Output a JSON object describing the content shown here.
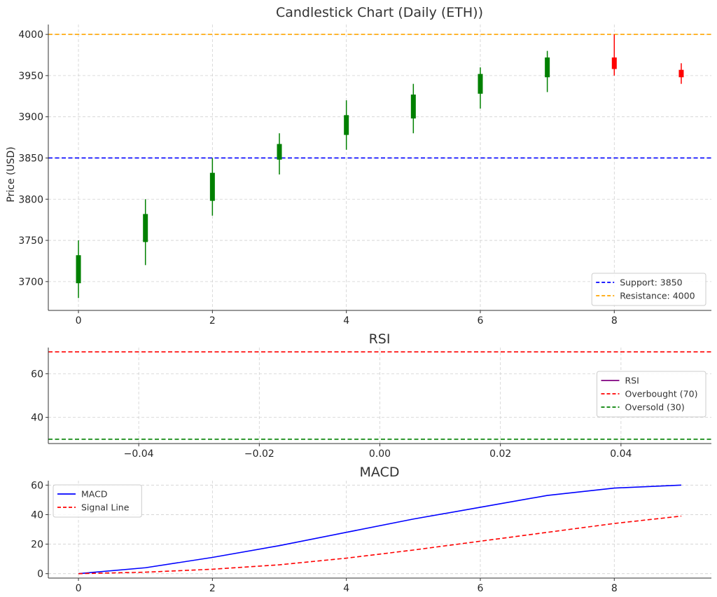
{
  "chart_data": [
    {
      "type": "candlestick",
      "title": "Candlestick Chart (Daily (ETH))",
      "xlabel": "",
      "ylabel": "Price (USD)",
      "xlim": [
        -0.45,
        9.45
      ],
      "ylim": [
        3665,
        4012
      ],
      "xticks": [
        0,
        2,
        4,
        6,
        8
      ],
      "yticks": [
        3700,
        3750,
        3800,
        3850,
        3900,
        3950,
        4000
      ],
      "grid": true,
      "legend_position": "lower-right",
      "colors": {
        "up": "#008000",
        "down": "#ff0000"
      },
      "candles": [
        {
          "x": 0,
          "open": 3698,
          "high": 3750,
          "low": 3680,
          "close": 3732
        },
        {
          "x": 1,
          "open": 3748,
          "high": 3800,
          "low": 3720,
          "close": 3782
        },
        {
          "x": 2,
          "open": 3798,
          "high": 3850,
          "low": 3780,
          "close": 3832
        },
        {
          "x": 3,
          "open": 3848,
          "high": 3880,
          "low": 3830,
          "close": 3867
        },
        {
          "x": 4,
          "open": 3878,
          "high": 3920,
          "low": 3860,
          "close": 3902
        },
        {
          "x": 5,
          "open": 3898,
          "high": 3940,
          "low": 3880,
          "close": 3927
        },
        {
          "x": 6,
          "open": 3928,
          "high": 3960,
          "low": 3910,
          "close": 3952
        },
        {
          "x": 7,
          "open": 3948,
          "high": 3980,
          "low": 3930,
          "close": 3972
        },
        {
          "x": 8,
          "open": 3972,
          "high": 4000,
          "low": 3950,
          "close": 3958
        },
        {
          "x": 9,
          "open": 3957,
          "high": 3965,
          "low": 3940,
          "close": 3948
        }
      ],
      "reference_lines": [
        {
          "name": "Support: 3850",
          "y": 3850,
          "color": "#0000ff"
        },
        {
          "name": "Resistance: 4000",
          "y": 4000,
          "color": "#ffa500"
        }
      ]
    },
    {
      "type": "line",
      "title": "RSI",
      "xlabel": "",
      "ylabel": "",
      "xlim": [
        -0.055,
        0.055
      ],
      "ylim": [
        28,
        72
      ],
      "xticks": [
        -0.04,
        -0.02,
        0.0,
        0.02,
        0.04
      ],
      "xtick_labels": [
        "−0.04",
        "−0.02",
        "0.00",
        "0.02",
        "0.04"
      ],
      "yticks": [
        40,
        60
      ],
      "grid": true,
      "legend_position": "center-right",
      "series": [
        {
          "name": "RSI",
          "color": "#800080",
          "values": []
        }
      ],
      "reference_lines": [
        {
          "name": "Overbought (70)",
          "y": 70,
          "color": "#ff0000"
        },
        {
          "name": "Oversold (30)",
          "y": 30,
          "color": "#008000"
        }
      ]
    },
    {
      "type": "line",
      "title": "MACD",
      "xlabel": "",
      "ylabel": "",
      "xlim": [
        -0.45,
        9.45
      ],
      "ylim": [
        -3,
        63
      ],
      "xticks": [
        0,
        2,
        4,
        6,
        8
      ],
      "yticks": [
        0,
        20,
        40,
        60
      ],
      "grid": true,
      "legend_position": "top-left",
      "x": [
        0,
        1,
        2,
        3,
        4,
        5,
        6,
        7,
        8,
        9
      ],
      "series": [
        {
          "name": "MACD",
          "color": "#0000ff",
          "dashed": false,
          "values": [
            0,
            4,
            11,
            19,
            28,
            37,
            45,
            53,
            58,
            60
          ]
        },
        {
          "name": "Signal Line",
          "color": "#ff0000",
          "dashed": true,
          "values": [
            0,
            1,
            3,
            6,
            10.5,
            16,
            22,
            28,
            34,
            39
          ]
        }
      ]
    }
  ]
}
